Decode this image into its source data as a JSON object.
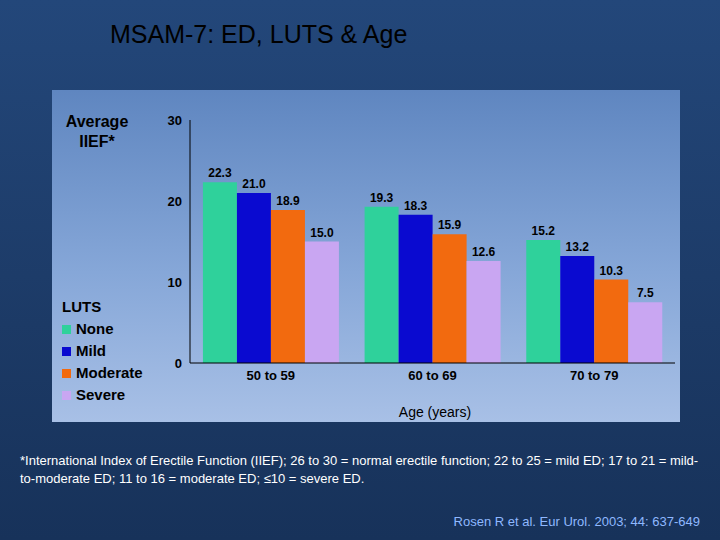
{
  "chart_data": {
    "type": "bar",
    "title": "MSAM-7: ED, LUTS & Age",
    "y_label": "Average IIEF*",
    "x_label": "Age (years)",
    "legend_title": "LUTS",
    "categories": [
      "50 to 59",
      "60 to 69",
      "70 to 79"
    ],
    "series": [
      {
        "name": "None",
        "color": "#2fd19b",
        "values": [
          22.3,
          19.3,
          15.2
        ],
        "value_labels": [
          "22.3",
          "19.3",
          "15.2"
        ]
      },
      {
        "name": "Mild",
        "color": "#0a0ad0",
        "values": [
          21.0,
          18.3,
          13.2
        ],
        "value_labels": [
          "21.0",
          "18.3",
          "13.2"
        ]
      },
      {
        "name": "Moderate",
        "color": "#f26a0f",
        "values": [
          18.9,
          15.9,
          10.3
        ],
        "value_labels": [
          "18.9",
          "15.9",
          "10.3"
        ]
      },
      {
        "name": "Severe",
        "color": "#c9a6f2",
        "values": [
          15.0,
          12.6,
          7.5
        ],
        "value_labels": [
          "15.0",
          "12.6",
          "7.5"
        ]
      }
    ],
    "ylim": [
      0,
      30
    ],
    "yticks": [
      0,
      10,
      20,
      30
    ],
    "grid": false,
    "data_labels": true,
    "legend": "left",
    "annotations": [
      "*International Index of Erectile Function (IIEF); 26 to 30 = normal erectile function; 22 to 25 = mild ED; 17 to 21 = mild-to-moderate ED; 11 to 16 = moderate ED; ≤10 = severe ED.",
      "Rosen R et al. Eur Urol. 2003; 44: 637-649"
    ]
  }
}
